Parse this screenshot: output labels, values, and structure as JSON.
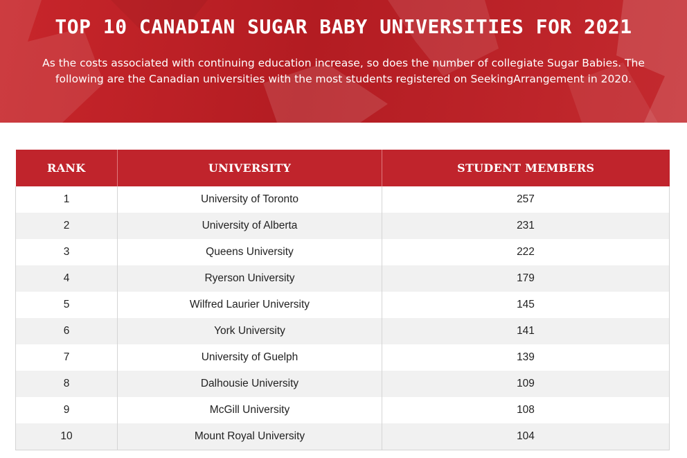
{
  "banner": {
    "title": "TOP 10 CANADIAN SUGAR BABY UNIVERSITIES FOR 2021",
    "description": "As the costs associated with continuing education increase, so does the number of collegiate Sugar Babies. The following are the Canadian universities with the most students registered on SeekingArrangement in 2020.",
    "background_color": "#c0242c"
  },
  "table": {
    "headers": [
      "RANK",
      "UNIVERSITY",
      "STUDENT MEMBERS"
    ],
    "header_color": "#c0242c",
    "rows": [
      {
        "rank": "1",
        "university": "University of Toronto",
        "members": "257"
      },
      {
        "rank": "2",
        "university": "University of Alberta",
        "members": "231"
      },
      {
        "rank": "3",
        "university": "Queens University",
        "members": "222"
      },
      {
        "rank": "4",
        "university": "Ryerson University",
        "members": "179"
      },
      {
        "rank": "5",
        "university": "Wilfred Laurier University",
        "members": "145"
      },
      {
        "rank": "6",
        "university": "York University",
        "members": "141"
      },
      {
        "rank": "7",
        "university": "University of Guelph",
        "members": "139"
      },
      {
        "rank": "8",
        "university": "Dalhousie University",
        "members": "109"
      },
      {
        "rank": "9",
        "university": "McGill University",
        "members": "108"
      },
      {
        "rank": "10",
        "university": "Mount Royal University",
        "members": "104"
      }
    ]
  }
}
